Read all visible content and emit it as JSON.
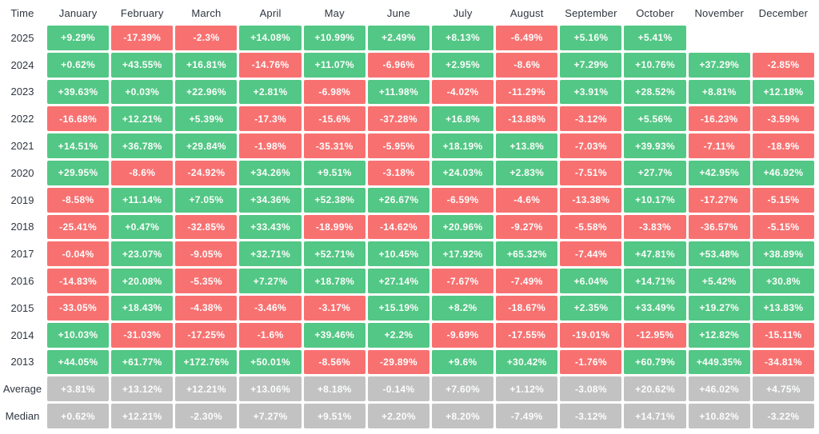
{
  "table": {
    "time_header": "Time",
    "months": [
      "January",
      "February",
      "March",
      "April",
      "May",
      "June",
      "July",
      "August",
      "September",
      "October",
      "November",
      "December"
    ],
    "rows": [
      {
        "label": "2025",
        "type": "year",
        "values": [
          "+9.29%",
          "-17.39%",
          "-2.3%",
          "+14.08%",
          "+10.99%",
          "+2.49%",
          "+8.13%",
          "-6.49%",
          "+5.16%",
          "+5.41%",
          null,
          null
        ]
      },
      {
        "label": "2024",
        "type": "year",
        "values": [
          "+0.62%",
          "+43.55%",
          "+16.81%",
          "-14.76%",
          "+11.07%",
          "-6.96%",
          "+2.95%",
          "-8.6%",
          "+7.29%",
          "+10.76%",
          "+37.29%",
          "-2.85%"
        ]
      },
      {
        "label": "2023",
        "type": "year",
        "values": [
          "+39.63%",
          "+0.03%",
          "+22.96%",
          "+2.81%",
          "-6.98%",
          "+11.98%",
          "-4.02%",
          "-11.29%",
          "+3.91%",
          "+28.52%",
          "+8.81%",
          "+12.18%"
        ]
      },
      {
        "label": "2022",
        "type": "year",
        "values": [
          "-16.68%",
          "+12.21%",
          "+5.39%",
          "-17.3%",
          "-15.6%",
          "-37.28%",
          "+16.8%",
          "-13.88%",
          "-3.12%",
          "+5.56%",
          "-16.23%",
          "-3.59%"
        ]
      },
      {
        "label": "2021",
        "type": "year",
        "values": [
          "+14.51%",
          "+36.78%",
          "+29.84%",
          "-1.98%",
          "-35.31%",
          "-5.95%",
          "+18.19%",
          "+13.8%",
          "-7.03%",
          "+39.93%",
          "-7.11%",
          "-18.9%"
        ]
      },
      {
        "label": "2020",
        "type": "year",
        "values": [
          "+29.95%",
          "-8.6%",
          "-24.92%",
          "+34.26%",
          "+9.51%",
          "-3.18%",
          "+24.03%",
          "+2.83%",
          "-7.51%",
          "+27.7%",
          "+42.95%",
          "+46.92%"
        ]
      },
      {
        "label": "2019",
        "type": "year",
        "values": [
          "-8.58%",
          "+11.14%",
          "+7.05%",
          "+34.36%",
          "+52.38%",
          "+26.67%",
          "-6.59%",
          "-4.6%",
          "-13.38%",
          "+10.17%",
          "-17.27%",
          "-5.15%"
        ]
      },
      {
        "label": "2018",
        "type": "year",
        "values": [
          "-25.41%",
          "+0.47%",
          "-32.85%",
          "+33.43%",
          "-18.99%",
          "-14.62%",
          "+20.96%",
          "-9.27%",
          "-5.58%",
          "-3.83%",
          "-36.57%",
          "-5.15%"
        ]
      },
      {
        "label": "2017",
        "type": "year",
        "values": [
          "-0.04%",
          "+23.07%",
          "-9.05%",
          "+32.71%",
          "+52.71%",
          "+10.45%",
          "+17.92%",
          "+65.32%",
          "-7.44%",
          "+47.81%",
          "+53.48%",
          "+38.89%"
        ]
      },
      {
        "label": "2016",
        "type": "year",
        "values": [
          "-14.83%",
          "+20.08%",
          "-5.35%",
          "+7.27%",
          "+18.78%",
          "+27.14%",
          "-7.67%",
          "-7.49%",
          "+6.04%",
          "+14.71%",
          "+5.42%",
          "+30.8%"
        ]
      },
      {
        "label": "2015",
        "type": "year",
        "values": [
          "-33.05%",
          "+18.43%",
          "-4.38%",
          "-3.46%",
          "-3.17%",
          "+15.19%",
          "+8.2%",
          "-18.67%",
          "+2.35%",
          "+33.49%",
          "+19.27%",
          "+13.83%"
        ]
      },
      {
        "label": "2014",
        "type": "year",
        "values": [
          "+10.03%",
          "-31.03%",
          "-17.25%",
          "-1.6%",
          "+39.46%",
          "+2.2%",
          "-9.69%",
          "-17.55%",
          "-19.01%",
          "-12.95%",
          "+12.82%",
          "-15.11%"
        ]
      },
      {
        "label": "2013",
        "type": "year",
        "values": [
          "+44.05%",
          "+61.77%",
          "+172.76%",
          "+50.01%",
          "-8.56%",
          "-29.89%",
          "+9.6%",
          "+30.42%",
          "-1.76%",
          "+60.79%",
          "+449.35%",
          "-34.81%"
        ]
      },
      {
        "label": "Average",
        "type": "summary",
        "values": [
          "+3.81%",
          "+13.12%",
          "+12.21%",
          "+13.06%",
          "+8.18%",
          "-0.14%",
          "+7.60%",
          "+1.12%",
          "-3.08%",
          "+20.62%",
          "+46.02%",
          "+4.75%"
        ]
      },
      {
        "label": "Median",
        "type": "summary",
        "values": [
          "+0.62%",
          "+12.21%",
          "-2.30%",
          "+7.27%",
          "+9.51%",
          "+2.20%",
          "+8.20%",
          "-7.49%",
          "-3.12%",
          "+14.71%",
          "+10.82%",
          "-3.22%"
        ]
      }
    ]
  },
  "colors": {
    "positive": "#53c785",
    "negative": "#f87171",
    "summary": "#c2c2c2",
    "cell_text": "#fcfdfd",
    "header_text": "#2f3640"
  },
  "chart_data": {
    "type": "heatmap",
    "columns": [
      "January",
      "February",
      "March",
      "April",
      "May",
      "June",
      "July",
      "August",
      "September",
      "October",
      "November",
      "December"
    ],
    "row_labels": [
      "2025",
      "2024",
      "2023",
      "2022",
      "2021",
      "2020",
      "2019",
      "2018",
      "2017",
      "2016",
      "2015",
      "2014",
      "2013",
      "Average",
      "Median"
    ],
    "unit": "%",
    "values": [
      [
        9.29,
        -17.39,
        -2.3,
        14.08,
        10.99,
        2.49,
        8.13,
        -6.49,
        5.16,
        5.41,
        null,
        null
      ],
      [
        0.62,
        43.55,
        16.81,
        -14.76,
        11.07,
        -6.96,
        2.95,
        -8.6,
        7.29,
        10.76,
        37.29,
        -2.85
      ],
      [
        39.63,
        0.03,
        22.96,
        2.81,
        -6.98,
        11.98,
        -4.02,
        -11.29,
        3.91,
        28.52,
        8.81,
        12.18
      ],
      [
        -16.68,
        12.21,
        5.39,
        -17.3,
        -15.6,
        -37.28,
        16.8,
        -13.88,
        -3.12,
        5.56,
        -16.23,
        -3.59
      ],
      [
        14.51,
        36.78,
        29.84,
        -1.98,
        -35.31,
        -5.95,
        18.19,
        13.8,
        -7.03,
        39.93,
        -7.11,
        -18.9
      ],
      [
        29.95,
        -8.6,
        -24.92,
        34.26,
        9.51,
        -3.18,
        24.03,
        2.83,
        -7.51,
        27.7,
        42.95,
        46.92
      ],
      [
        -8.58,
        11.14,
        7.05,
        34.36,
        52.38,
        26.67,
        -6.59,
        -4.6,
        -13.38,
        10.17,
        -17.27,
        -5.15
      ],
      [
        -25.41,
        0.47,
        -32.85,
        33.43,
        -18.99,
        -14.62,
        20.96,
        -9.27,
        -5.58,
        -3.83,
        -36.57,
        -5.15
      ],
      [
        -0.04,
        23.07,
        -9.05,
        32.71,
        52.71,
        10.45,
        17.92,
        65.32,
        -7.44,
        47.81,
        53.48,
        38.89
      ],
      [
        -14.83,
        20.08,
        -5.35,
        7.27,
        18.78,
        27.14,
        -7.67,
        -7.49,
        6.04,
        14.71,
        5.42,
        30.8
      ],
      [
        -33.05,
        18.43,
        -4.38,
        -3.46,
        -3.17,
        15.19,
        8.2,
        -18.67,
        2.35,
        33.49,
        19.27,
        13.83
      ],
      [
        10.03,
        -31.03,
        -17.25,
        -1.6,
        39.46,
        2.2,
        -9.69,
        -17.55,
        -19.01,
        -12.95,
        12.82,
        -15.11
      ],
      [
        44.05,
        61.77,
        172.76,
        50.01,
        -8.56,
        -29.89,
        9.6,
        30.42,
        -1.76,
        60.79,
        449.35,
        -34.81
      ],
      [
        3.81,
        13.12,
        12.21,
        13.06,
        8.18,
        -0.14,
        7.6,
        1.12,
        -3.08,
        20.62,
        46.02,
        4.75
      ],
      [
        0.62,
        12.21,
        -2.3,
        7.27,
        9.51,
        2.2,
        8.2,
        -7.49,
        -3.12,
        14.71,
        10.82,
        -3.22
      ]
    ],
    "legend_position": "none",
    "grid": false
  }
}
